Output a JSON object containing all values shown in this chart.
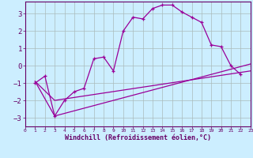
{
  "xlabel": "Windchill (Refroidissement éolien,°C)",
  "background_color": "#cceeff",
  "grid_color": "#aabbbb",
  "line_color": "#990099",
  "xlim": [
    0,
    23
  ],
  "ylim": [
    -3.5,
    3.7
  ],
  "xticks": [
    0,
    1,
    2,
    3,
    4,
    5,
    6,
    7,
    8,
    9,
    10,
    11,
    12,
    13,
    14,
    15,
    16,
    17,
    18,
    19,
    20,
    21,
    22,
    23
  ],
  "yticks": [
    -3,
    -2,
    -1,
    0,
    1,
    2,
    3
  ],
  "line1_x": [
    1,
    2,
    3,
    4,
    5,
    6,
    7,
    8,
    9,
    10,
    11,
    12,
    13,
    14,
    15,
    16,
    17,
    18,
    19,
    20,
    21,
    22
  ],
  "line1_y": [
    -1.0,
    -0.6,
    -2.9,
    -2.0,
    -1.5,
    -1.3,
    0.4,
    0.5,
    -0.3,
    2.0,
    2.8,
    2.7,
    3.3,
    3.5,
    3.5,
    3.1,
    2.8,
    2.5,
    1.2,
    1.1,
    0.0,
    -0.5
  ],
  "line2_x": [
    1,
    3,
    23
  ],
  "line2_y": [
    -0.9,
    -2.0,
    -0.3
  ],
  "line3_x": [
    1,
    3,
    23
  ],
  "line3_y": [
    -0.9,
    -2.9,
    0.1
  ]
}
